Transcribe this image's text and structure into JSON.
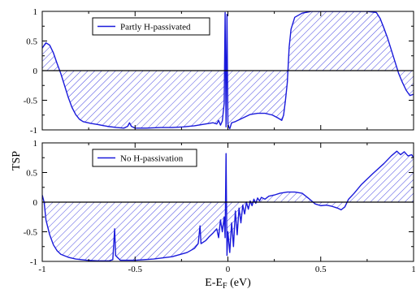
{
  "chart_data": [
    {
      "type": "area",
      "xlim": [
        -1,
        1
      ],
      "ylim": [
        -1,
        1
      ],
      "x_ticks": [
        -1,
        -0.5,
        0,
        0.5,
        1
      ],
      "x_tick_labels": [
        "",
        "",
        "",
        "",
        ""
      ],
      "y_ticks": [
        -1,
        -0.5,
        0,
        0.5,
        1
      ],
      "y_tick_labels": [
        "-1",
        "-0.5",
        "0",
        "0.5",
        "1"
      ],
      "fill": "hatched",
      "legend": {
        "label": "Partly H-passivated",
        "placement": "top-left"
      },
      "series": [
        {
          "name": "Partly H-passivated",
          "color": "#1a1adb",
          "points": [
            [
              -1.0,
              0.38
            ],
            [
              -0.98,
              0.47
            ],
            [
              -0.96,
              0.43
            ],
            [
              -0.94,
              0.3
            ],
            [
              -0.92,
              0.12
            ],
            [
              -0.9,
              -0.05
            ],
            [
              -0.88,
              -0.25
            ],
            [
              -0.86,
              -0.45
            ],
            [
              -0.84,
              -0.62
            ],
            [
              -0.82,
              -0.74
            ],
            [
              -0.8,
              -0.82
            ],
            [
              -0.78,
              -0.86
            ],
            [
              -0.74,
              -0.89
            ],
            [
              -0.7,
              -0.91
            ],
            [
              -0.65,
              -0.94
            ],
            [
              -0.6,
              -0.96
            ],
            [
              -0.56,
              -0.97
            ],
            [
              -0.54,
              -0.94
            ],
            [
              -0.53,
              -0.88
            ],
            [
              -0.52,
              -0.94
            ],
            [
              -0.5,
              -0.97
            ],
            [
              -0.44,
              -0.97
            ],
            [
              -0.36,
              -0.96
            ],
            [
              -0.3,
              -0.96
            ],
            [
              -0.24,
              -0.95
            ],
            [
              -0.18,
              -0.93
            ],
            [
              -0.12,
              -0.9
            ],
            [
              -0.08,
              -0.88
            ],
            [
              -0.06,
              -0.9
            ],
            [
              -0.05,
              -0.84
            ],
            [
              -0.04,
              -0.92
            ],
            [
              -0.03,
              -0.85
            ],
            [
              -0.02,
              -0.55
            ],
            [
              -0.015,
              0.98
            ],
            [
              -0.01,
              -0.95
            ],
            [
              -0.005,
              0.95
            ],
            [
              0.0,
              -0.9
            ],
            [
              0.005,
              -0.95
            ],
            [
              0.01,
              -0.98
            ],
            [
              0.02,
              -0.88
            ],
            [
              0.04,
              -0.86
            ],
            [
              0.08,
              -0.8
            ],
            [
              0.12,
              -0.74
            ],
            [
              0.16,
              -0.72
            ],
            [
              0.2,
              -0.72
            ],
            [
              0.24,
              -0.75
            ],
            [
              0.27,
              -0.8
            ],
            [
              0.29,
              -0.84
            ],
            [
              0.3,
              -0.75
            ],
            [
              0.31,
              -0.5
            ],
            [
              0.32,
              -0.2
            ],
            [
              0.325,
              0.1
            ],
            [
              0.33,
              0.4
            ],
            [
              0.34,
              0.7
            ],
            [
              0.36,
              0.9
            ],
            [
              0.4,
              0.97
            ],
            [
              0.45,
              1.0
            ],
            [
              0.55,
              1.0
            ],
            [
              0.65,
              1.0
            ],
            [
              0.75,
              1.0
            ],
            [
              0.8,
              0.98
            ],
            [
              0.82,
              0.88
            ],
            [
              0.84,
              0.72
            ],
            [
              0.86,
              0.55
            ],
            [
              0.88,
              0.35
            ],
            [
              0.9,
              0.15
            ],
            [
              0.92,
              -0.05
            ],
            [
              0.94,
              -0.2
            ],
            [
              0.96,
              -0.33
            ],
            [
              0.98,
              -0.42
            ],
            [
              1.0,
              -0.4
            ]
          ]
        }
      ]
    },
    {
      "type": "area",
      "xlabel": "E-E",
      "xlabel_subscript": "F",
      "xlabel_unit": " (eV)",
      "ylabel": "TSP",
      "xlim": [
        -1,
        1
      ],
      "ylim": [
        -1,
        1
      ],
      "x_ticks": [
        -1,
        -0.5,
        0,
        0.5,
        1
      ],
      "x_tick_labels": [
        "-1",
        "-0.5",
        "0",
        "0.5",
        "1"
      ],
      "y_ticks": [
        -1,
        -0.5,
        0,
        0.5,
        1
      ],
      "y_tick_labels": [
        "-1",
        "-0.5",
        "0",
        "0.5",
        "1"
      ],
      "fill": "hatched",
      "legend": {
        "label": "No H-passivation",
        "placement": "top-left"
      },
      "series": [
        {
          "name": "No H-passivation",
          "color": "#1a1adb",
          "points": [
            [
              -1.0,
              0.12
            ],
            [
              -0.99,
              0.0
            ],
            [
              -0.98,
              -0.3
            ],
            [
              -0.96,
              -0.55
            ],
            [
              -0.94,
              -0.72
            ],
            [
              -0.92,
              -0.82
            ],
            [
              -0.9,
              -0.88
            ],
            [
              -0.86,
              -0.93
            ],
            [
              -0.82,
              -0.96
            ],
            [
              -0.76,
              -0.98
            ],
            [
              -0.7,
              -0.99
            ],
            [
              -0.64,
              -0.99
            ],
            [
              -0.62,
              -0.97
            ],
            [
              -0.61,
              -0.45
            ],
            [
              -0.605,
              -0.9
            ],
            [
              -0.58,
              -0.98
            ],
            [
              -0.5,
              -0.98
            ],
            [
              -0.4,
              -0.96
            ],
            [
              -0.3,
              -0.92
            ],
            [
              -0.22,
              -0.85
            ],
            [
              -0.18,
              -0.78
            ],
            [
              -0.16,
              -0.7
            ],
            [
              -0.15,
              -0.4
            ],
            [
              -0.145,
              -0.7
            ],
            [
              -0.12,
              -0.65
            ],
            [
              -0.1,
              -0.58
            ],
            [
              -0.08,
              -0.52
            ],
            [
              -0.06,
              -0.45
            ],
            [
              -0.05,
              -0.6
            ],
            [
              -0.04,
              -0.3
            ],
            [
              -0.03,
              -0.5
            ],
            [
              -0.02,
              -0.25
            ],
            [
              -0.015,
              -0.6
            ],
            [
              -0.01,
              0.82
            ],
            [
              -0.005,
              -0.9
            ],
            [
              0.0,
              -0.5
            ],
            [
              0.01,
              -0.85
            ],
            [
              0.02,
              -0.35
            ],
            [
              0.03,
              -0.75
            ],
            [
              0.04,
              -0.15
            ],
            [
              0.05,
              -0.55
            ],
            [
              0.06,
              -0.1
            ],
            [
              0.07,
              -0.35
            ],
            [
              0.08,
              -0.05
            ],
            [
              0.09,
              -0.2
            ],
            [
              0.1,
              0.0
            ],
            [
              0.11,
              -0.12
            ],
            [
              0.12,
              0.02
            ],
            [
              0.13,
              -0.06
            ],
            [
              0.14,
              0.05
            ],
            [
              0.15,
              -0.02
            ],
            [
              0.16,
              0.07
            ],
            [
              0.17,
              0.02
            ],
            [
              0.18,
              0.08
            ],
            [
              0.2,
              0.05
            ],
            [
              0.22,
              0.1
            ],
            [
              0.25,
              0.12
            ],
            [
              0.28,
              0.15
            ],
            [
              0.32,
              0.17
            ],
            [
              0.36,
              0.17
            ],
            [
              0.4,
              0.15
            ],
            [
              0.44,
              0.05
            ],
            [
              0.47,
              -0.03
            ],
            [
              0.5,
              -0.06
            ],
            [
              0.53,
              -0.05
            ],
            [
              0.56,
              -0.07
            ],
            [
              0.59,
              -0.1
            ],
            [
              0.61,
              -0.13
            ],
            [
              0.63,
              -0.08
            ],
            [
              0.65,
              0.05
            ],
            [
              0.68,
              0.15
            ],
            [
              0.72,
              0.3
            ],
            [
              0.78,
              0.48
            ],
            [
              0.84,
              0.65
            ],
            [
              0.88,
              0.78
            ],
            [
              0.91,
              0.86
            ],
            [
              0.93,
              0.8
            ],
            [
              0.95,
              0.85
            ],
            [
              0.97,
              0.78
            ],
            [
              0.99,
              0.8
            ],
            [
              1.0,
              0.75
            ]
          ]
        }
      ]
    }
  ]
}
